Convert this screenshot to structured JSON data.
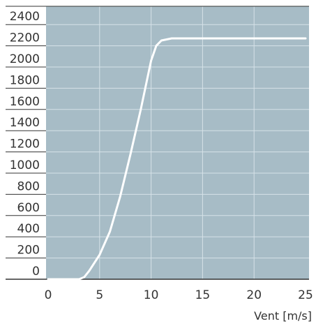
{
  "chart_data": {
    "type": "line",
    "title": "",
    "xlabel": "Vent [m/s]",
    "ylabel": "",
    "xlim": [
      0,
      25
    ],
    "ylim": [
      0,
      2400
    ],
    "x_ticks": [
      0,
      5,
      10,
      15,
      20,
      25
    ],
    "x_tick_labels": [
      "0",
      "5",
      "10",
      "15",
      "20",
      "25"
    ],
    "y_ticks": [
      0,
      200,
      400,
      600,
      800,
      1000,
      1200,
      1400,
      1600,
      1800,
      2000,
      2200,
      2400
    ],
    "y_tick_labels": [
      "0",
      "200",
      "400",
      "600",
      "800",
      "1000",
      "1200",
      "1400",
      "1600",
      "1800",
      "2000",
      "2200",
      "2400"
    ],
    "grid": true,
    "legend": "none",
    "series": [
      {
        "x": [
          0,
          3,
          3.5,
          4,
          5,
          6,
          7,
          8,
          9,
          10,
          10.5,
          11,
          12,
          13,
          15,
          20,
          25
        ],
        "values": [
          0,
          0,
          20,
          80,
          230,
          450,
          780,
          1180,
          1600,
          2060,
          2200,
          2250,
          2270,
          2270,
          2270,
          2270,
          2270
        ]
      }
    ],
    "colors": {
      "plot_background": "#a7bcc6",
      "grid": "#d6e2e8",
      "line": "#ffffff",
      "axis": "#333333"
    }
  }
}
